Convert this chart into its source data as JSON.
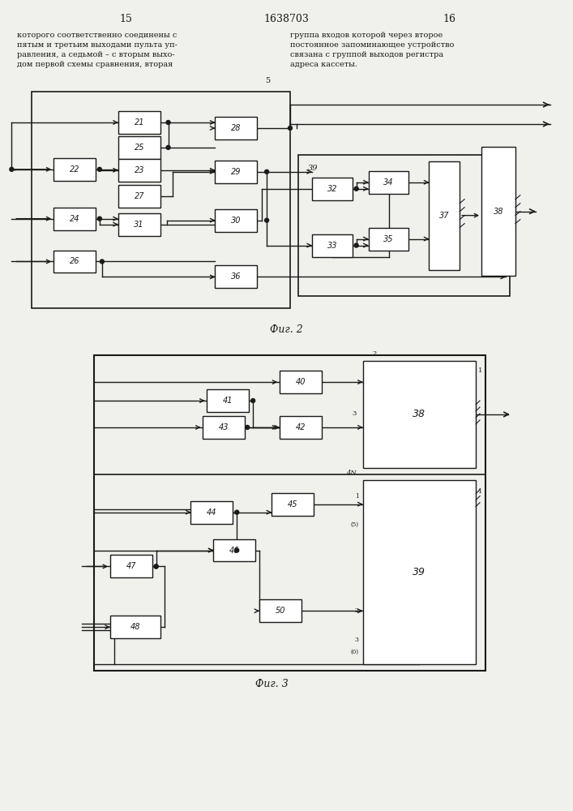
{
  "page_width": 7.07,
  "page_height": 10.0,
  "bg_color": "#f2f2ee",
  "line_color": "#1a1a1a",
  "box_color": "#ffffff",
  "header": {
    "left_num": "15",
    "center_num": "1638703",
    "right_num": "16"
  },
  "text_left": "которого соответственно соединены с\nпятым и третьим выходами пульта уп-\nравления, а седьмой – с вторым выхо-\nдом первой схемы сравнения, вторая",
  "text_right": "группа входов которой через второе\nпостоянное запоминающее устройство\nсвязана с группой выходов регистра\nадреса кассеты.",
  "fig2_caption": "Фиг. 2",
  "fig3_caption": "Фиг. 3"
}
